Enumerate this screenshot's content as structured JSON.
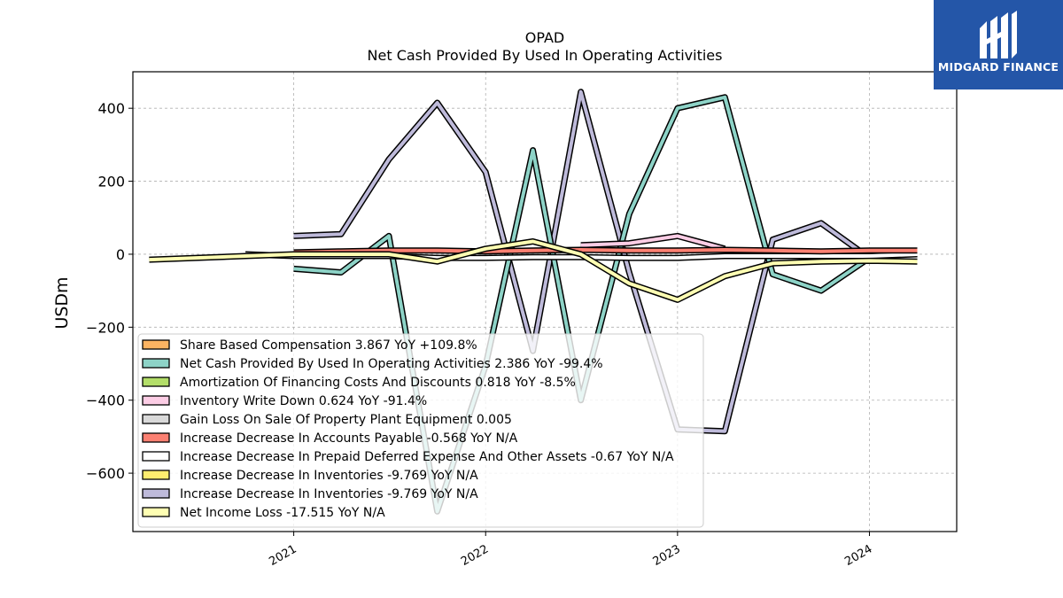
{
  "chart_data": {
    "type": "line",
    "title": "OPAD",
    "subtitle": "Net Cash Provided By Used In Operating Activities",
    "xlabel": "",
    "ylabel": "USDm",
    "xlim": [
      "2020-03-01",
      "2024-06-15"
    ],
    "ylim": [
      -760,
      500
    ],
    "x_ticks": [
      "2021",
      "2022",
      "2023",
      "2024"
    ],
    "y_ticks": [
      400,
      200,
      0,
      -200,
      -400,
      -600
    ],
    "y_tick_labels": [
      "400",
      "200",
      "0",
      "−200",
      "−400",
      "−600"
    ],
    "grid": true,
    "legend_position": "lower-left",
    "series": [
      {
        "name": "Increase Decrease In Inventories",
        "color": "#bebada",
        "x": [
          "2021-01-01",
          "2021-04-01",
          "2021-07-01",
          "2021-10-01",
          "2022-01-01",
          "2022-04-01",
          "2022-07-01",
          "2022-10-01",
          "2023-01-01",
          "2023-04-01",
          "2023-07-01",
          "2023-10-01",
          "2024-01-01"
        ],
        "y": [
          50,
          55,
          260,
          415,
          225,
          -265,
          445,
          -50,
          -480,
          -485,
          40,
          85,
          -10
        ]
      },
      {
        "name": "Net Cash Provided By Used In Operating Activities",
        "color": "#8dd3c7",
        "x": [
          "2021-01-01",
          "2021-04-01",
          "2021-07-01",
          "2021-10-01",
          "2022-01-01",
          "2022-04-01",
          "2022-07-01",
          "2022-10-01",
          "2023-01-01",
          "2023-04-01",
          "2023-07-01",
          "2023-10-01",
          "2024-01-01"
        ],
        "y": [
          -40,
          -50,
          50,
          -705,
          -305,
          285,
          -400,
          110,
          400,
          430,
          -55,
          -100,
          -10
        ]
      },
      {
        "name": "Inventory Write Down",
        "color": "#fccde5",
        "x": [
          "2022-07-01",
          "2022-10-01",
          "2023-01-01",
          "2023-04-01"
        ],
        "y": [
          25,
          30,
          50,
          15
        ]
      },
      {
        "name": "Increase Decrease In Prepaid Deferred Expense And Other Assets",
        "color": "#ffffff",
        "x": [
          "2020-10-01",
          "2021-01-01",
          "2021-04-01",
          "2021-07-01",
          "2021-10-01",
          "2022-01-01",
          "2022-04-01",
          "2022-07-01",
          "2022-10-01",
          "2023-01-01",
          "2023-04-01",
          "2023-07-01",
          "2023-10-01",
          "2024-01-01",
          "2024-04-01"
        ],
        "y": [
          0,
          -5,
          -5,
          -5,
          -10,
          -10,
          -8,
          -8,
          -10,
          -10,
          -5,
          -5,
          -5,
          -5,
          0
        ]
      },
      {
        "name": "Increase Decrease In Accounts Payable",
        "color": "#fb8072",
        "x": [
          "2021-01-01",
          "2021-04-01",
          "2021-07-01",
          "2021-10-01",
          "2022-01-01",
          "2022-04-01",
          "2022-07-01",
          "2022-10-01",
          "2023-01-01",
          "2023-04-01",
          "2023-07-01",
          "2023-10-01",
          "2024-01-01",
          "2024-04-01"
        ],
        "y": [
          5,
          8,
          10,
          10,
          8,
          10,
          12,
          10,
          10,
          12,
          10,
          8,
          10,
          10
        ]
      },
      {
        "name": "Net Income Loss",
        "color": "#ffffb3",
        "x": [
          "2020-04-01",
          "2020-10-01",
          "2021-01-01",
          "2021-04-01",
          "2021-07-01",
          "2021-10-01",
          "2022-01-01",
          "2022-04-01",
          "2022-07-01",
          "2022-10-01",
          "2023-01-01",
          "2023-04-01",
          "2023-07-01",
          "2023-10-01",
          "2024-01-01",
          "2024-04-01"
        ],
        "y": [
          -15,
          -5,
          0,
          0,
          0,
          -20,
          15,
          35,
          0,
          -80,
          -125,
          -60,
          -25,
          -20,
          -18,
          -20
        ]
      }
    ],
    "legend": [
      {
        "label": "Share Based Compensation  3.867 YoY +109.8%",
        "color": "#fdb462"
      },
      {
        "label": "Net Cash Provided By Used In Operating Activities  2.386 YoY -99.4%",
        "color": "#8dd3c7"
      },
      {
        "label": "Amortization Of Financing Costs And Discounts  0.818 YoY -8.5%",
        "color": "#b3de69"
      },
      {
        "label": "Inventory Write Down  0.624 YoY -91.4%",
        "color": "#fccde5"
      },
      {
        "label": "Gain Loss On Sale Of Property Plant Equipment  0.005",
        "color": "#d9d9d9"
      },
      {
        "label": "Increase Decrease In Accounts Payable  -0.568 YoY N/A",
        "color": "#fb8072"
      },
      {
        "label": "Increase Decrease In Prepaid Deferred Expense And Other Assets  -0.67 YoY N/A",
        "color": "#ffffff"
      },
      {
        "label": "Increase Decrease In Inventories  -9.769 YoY N/A",
        "color": "#ffed6f"
      },
      {
        "label": "Increase Decrease In Inventories  -9.769 YoY N/A",
        "color": "#bebada"
      },
      {
        "label": "Net Income Loss  -17.515 YoY N/A",
        "color": "#ffffb3"
      }
    ]
  },
  "logo": {
    "brand": "MIDGARD FINANCE",
    "colors": {
      "background": "#2456a8",
      "mark": "#ffffff"
    }
  }
}
